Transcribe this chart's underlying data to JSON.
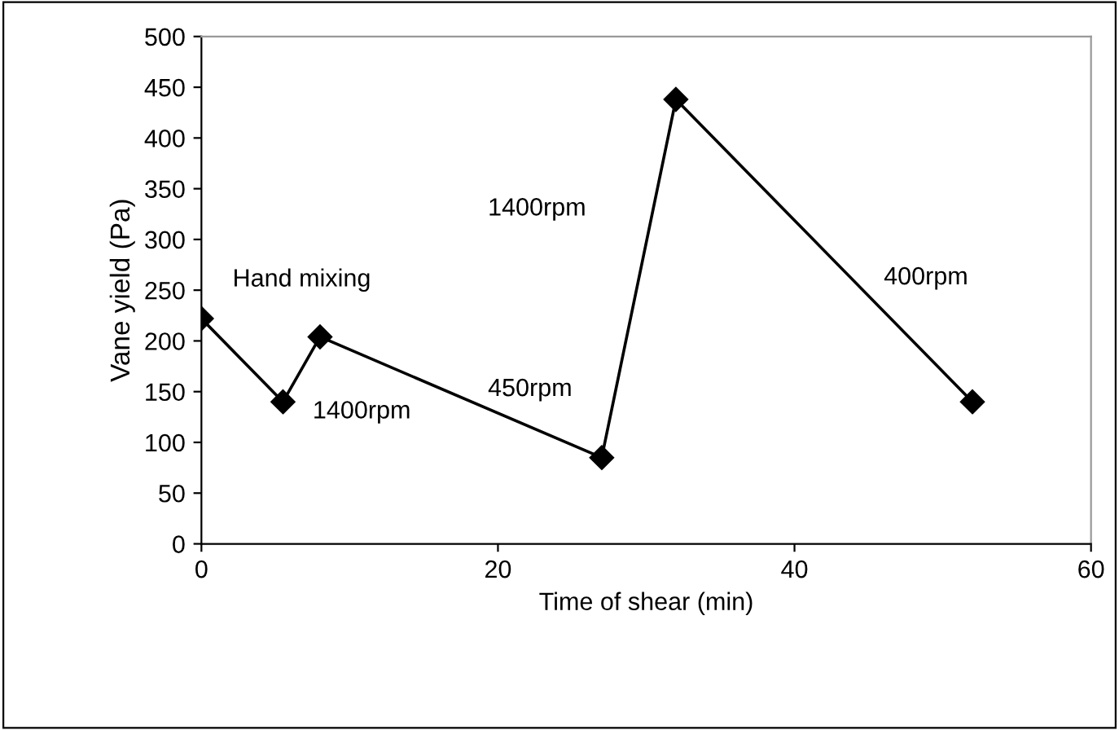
{
  "chart_data": {
    "type": "line",
    "xlabel": "Time of shear (min)",
    "ylabel": "Vane yield (Pa)",
    "x": [
      0,
      5.5,
      8,
      27,
      32,
      52
    ],
    "series": [
      {
        "color": "#000000",
        "values": [
          222,
          140,
          204,
          85,
          438,
          140
        ]
      }
    ],
    "marker": "diamond",
    "line_style": "solid",
    "xlim": [
      0,
      60
    ],
    "xticks": [
      0,
      20,
      40,
      60
    ],
    "ylim": [
      0,
      500
    ],
    "yticks": [
      0,
      50,
      100,
      150,
      200,
      250,
      300,
      350,
      400,
      450,
      500
    ],
    "grid": false,
    "legend": false,
    "annotations": [
      "Hand mixing",
      "1400rpm",
      "450rpm",
      "1400rpm",
      "400rpm"
    ]
  }
}
